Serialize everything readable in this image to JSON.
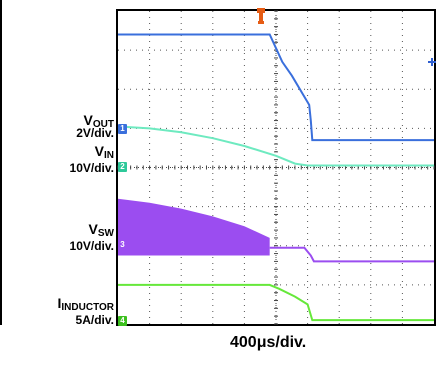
{
  "chart_data": {
    "type": "line",
    "title": "",
    "xlabel": "400μs/div.",
    "x_divisions": 10,
    "y_divisions": 8,
    "grid": true,
    "series": [
      {
        "name": "VOUT",
        "scale": "2V/div.",
        "marker": "1",
        "color": "#3a6fdc",
        "x_div": [
          0,
          4.8,
          5.0,
          5.2,
          5.5,
          6.05,
          6.1,
          6.15,
          10
        ],
        "y_div": [
          7.4,
          7.4,
          7.05,
          6.7,
          6.35,
          5.6,
          5.2,
          4.7,
          4.7
        ]
      },
      {
        "name": "VIN",
        "scale": "10V/div.",
        "marker": "2",
        "color": "#6eeac0",
        "x_div": [
          0,
          1.0,
          2.0,
          3.0,
          4.0,
          5.0,
          5.6,
          6.0,
          10
        ],
        "y_div": [
          5.05,
          5.0,
          4.9,
          4.75,
          4.55,
          4.3,
          4.1,
          4.05,
          4.05
        ]
      },
      {
        "name": "VSW",
        "scale": "10V/div.",
        "marker": "3",
        "color": "#9b4df0",
        "switching_envelope": {
          "x_div": [
            0,
            1,
            2,
            3,
            4,
            4.8
          ],
          "y_top_div": [
            3.2,
            3.1,
            2.95,
            2.75,
            2.5,
            2.2
          ],
          "y_bottom_div": [
            1.75,
            1.75,
            1.75,
            1.75,
            1.75,
            1.75
          ]
        },
        "x_div": [
          4.8,
          5.9,
          6.1,
          6.2,
          10
        ],
        "y_div": [
          1.95,
          1.95,
          1.75,
          1.6,
          1.6
        ]
      },
      {
        "name": "IINDUCTOR",
        "scale": "5A/div.",
        "marker": "4",
        "color": "#66e83a",
        "x_div": [
          0,
          4.8,
          5.1,
          5.6,
          6.0,
          6.15,
          10
        ],
        "y_div": [
          1.0,
          1.0,
          0.9,
          0.7,
          0.5,
          0.1,
          0.1
        ]
      }
    ]
  },
  "labels": {
    "vout_main": "V",
    "vout_sub": "OUT",
    "vout_scale": "2V/div.",
    "vin_main": "V",
    "vin_sub": "IN",
    "vin_scale": "10V/div.",
    "vsw_main": "V",
    "vsw_sub": "SW",
    "vsw_scale": "10V/div.",
    "ind_main": "I",
    "ind_sub": "INDUCTOR",
    "ind_scale": "5A/div."
  },
  "markers": [
    "1",
    "2",
    "3",
    "4"
  ],
  "marker_colors": [
    "#3a6fdc",
    "#2ec99a",
    "#9b4df0",
    "#3cbf1e"
  ],
  "trigger_color": "#e65c14"
}
